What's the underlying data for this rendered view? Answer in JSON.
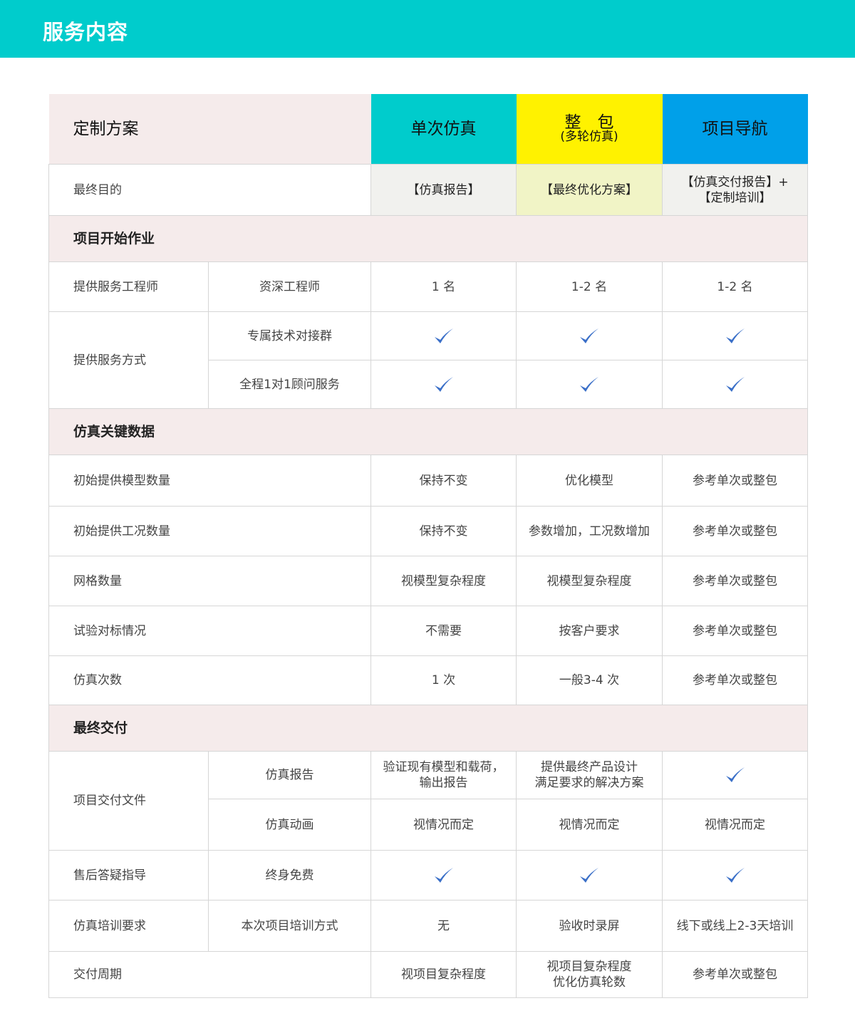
{
  "banner": {
    "title": "服务内容"
  },
  "colors": {
    "banner": "#00cccc",
    "single": "#00cccc",
    "package": "#fff200",
    "nav": "#00a0e9",
    "check": "#3a6fc8",
    "section_bg": "#f5ebeb"
  },
  "header": {
    "plan": "定制方案",
    "single": "单次仿真",
    "package": "整　包",
    "package_sub": "(多轮仿真)",
    "nav": "项目导航"
  },
  "purpose": {
    "label": "最终目的",
    "single": "【仿真报告】",
    "package": "【最终优化方案】",
    "nav1": "【仿真交付报告】+",
    "nav2": "【定制培训】"
  },
  "sections": {
    "start": "项目开始作业",
    "data": "仿真关键数据",
    "delivery": "最终交付"
  },
  "engineer": {
    "label": "提供服务工程师",
    "sub": "资深工程师",
    "single": "1 名",
    "package": "1-2 名",
    "nav": "1-2 名"
  },
  "method": {
    "label": "提供服务方式",
    "sub1": "专属技术对接群",
    "sub2": "全程1对1顾问服务",
    "icon": "check-icon"
  },
  "data_rows": [
    {
      "label": "初始提供模型数量",
      "single": "保持不变",
      "package": "优化模型",
      "nav": "参考单次或整包"
    },
    {
      "label": "初始提供工况数量",
      "single": "保持不变",
      "package": "参数增加，工况数增加",
      "nav": "参考单次或整包"
    },
    {
      "label": "网格数量",
      "single": "视模型复杂程度",
      "package": "视模型复杂程度",
      "nav": "参考单次或整包"
    },
    {
      "label": "试验对标情况",
      "single": "不需要",
      "package": "按客户要求",
      "nav": "参考单次或整包"
    },
    {
      "label": "仿真次数",
      "single": "1 次",
      "package": "一般3-4 次",
      "nav": "参考单次或整包"
    }
  ],
  "files": {
    "label": "项目交付文件",
    "sub1": "仿真报告",
    "single1a": "验证现有模型和载荷，",
    "single1b": "输出报告",
    "package1a": "提供最终产品设计",
    "package1b": "满足要求的解决方案",
    "sub2": "仿真动画",
    "single2": "视情况而定",
    "package2": "视情况而定",
    "nav2": "视情况而定"
  },
  "aftersale": {
    "label": "售后答疑指导",
    "sub": "终身免费"
  },
  "training": {
    "label": "仿真培训要求",
    "sub": "本次项目培训方式",
    "single": "无",
    "package": "验收时录屏",
    "nav": "线下或线上2-3天培训"
  },
  "cycle": {
    "label": "交付周期",
    "single": "视项目复杂程度",
    "package1": "视项目复杂程度",
    "package2": "优化仿真轮数",
    "nav": "参考单次或整包"
  }
}
